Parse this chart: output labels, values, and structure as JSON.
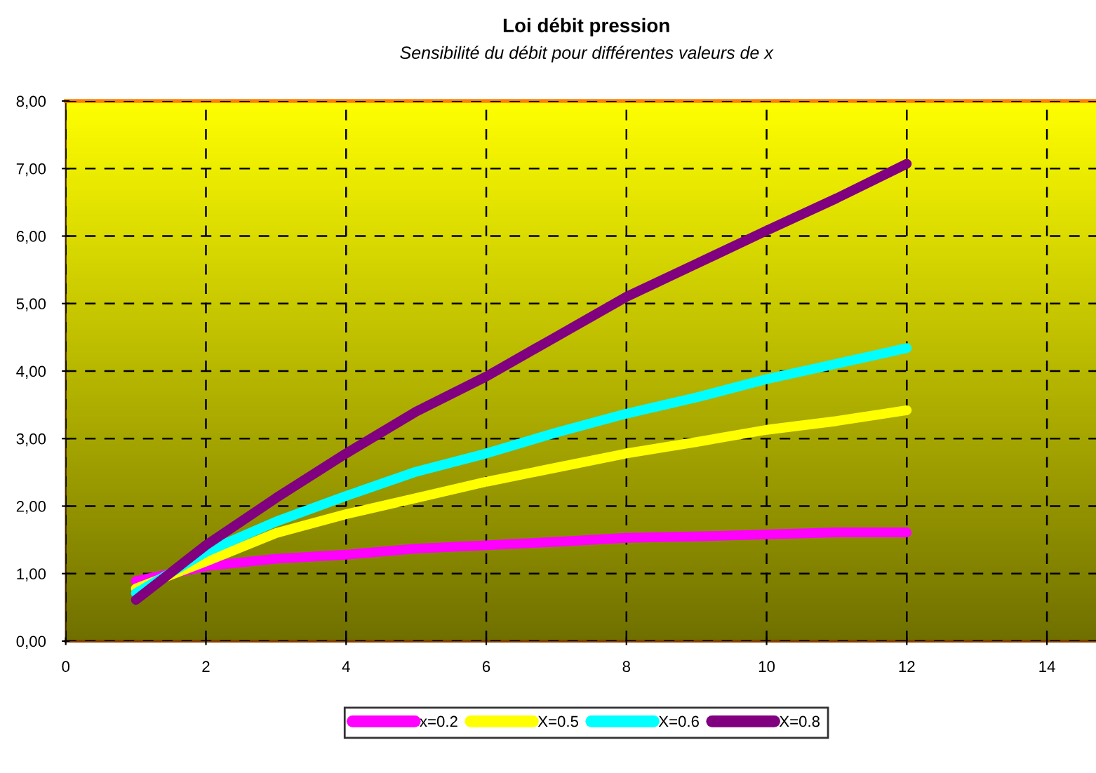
{
  "chart_data": {
    "type": "line",
    "title": "Loi débit pression",
    "subtitle": "Sensibilité du débit pour différentes valeurs de x",
    "x": [
      1,
      2,
      3,
      4,
      5,
      6,
      7,
      8,
      9,
      10,
      11,
      12
    ],
    "series": [
      {
        "name": "x=0.2",
        "color": "#ff00ff",
        "values": [
          0.89,
          1.11,
          1.22,
          1.28,
          1.37,
          1.42,
          1.47,
          1.53,
          1.55,
          1.58,
          1.61,
          1.61
        ]
      },
      {
        "name": "X=0.5",
        "color": "#ffff00",
        "values": [
          0.78,
          1.18,
          1.6,
          1.88,
          2.12,
          2.36,
          2.57,
          2.78,
          2.95,
          3.13,
          3.26,
          3.42
        ]
      },
      {
        "name": "X=0.6",
        "color": "#00ffff",
        "values": [
          0.71,
          1.32,
          1.77,
          2.15,
          2.51,
          2.78,
          3.09,
          3.37,
          3.61,
          3.88,
          4.11,
          4.34
        ]
      },
      {
        "name": "X=0.8",
        "color": "#800080",
        "values": [
          0.61,
          1.42,
          2.12,
          2.78,
          3.4,
          3.92,
          4.51,
          5.1,
          5.59,
          6.08,
          6.56,
          7.07
        ]
      }
    ],
    "xlim": [
      0,
      14.7
    ],
    "xticks": [
      0,
      2,
      4,
      6,
      8,
      10,
      12,
      14
    ],
    "ylim": [
      0,
      8
    ],
    "yticks": [
      {
        "value": 0,
        "label": "0,00"
      },
      {
        "value": 1,
        "label": "1,00"
      },
      {
        "value": 2,
        "label": "2,00"
      },
      {
        "value": 3,
        "label": "3,00"
      },
      {
        "value": 4,
        "label": "4,00"
      },
      {
        "value": 5,
        "label": "5,00"
      },
      {
        "value": 6,
        "label": "6,00"
      },
      {
        "value": 7,
        "label": "7,00"
      },
      {
        "value": 8,
        "label": "8,00"
      }
    ],
    "grid": true,
    "legend": "bottom",
    "marker": "none",
    "line_style": "solid"
  }
}
